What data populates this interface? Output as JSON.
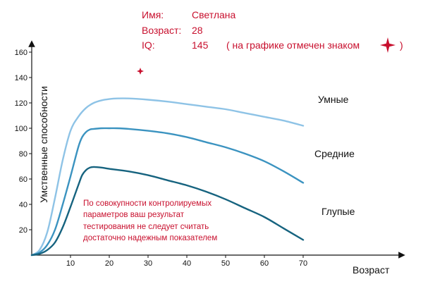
{
  "info": {
    "name_label": "Имя:",
    "name_value": "Светлана",
    "age_label": "Возраст:",
    "age_value": "28",
    "iq_label": "IQ:",
    "iq_value": "145",
    "iq_note_start": "( на графике отмечен знаком",
    "iq_note_end": ")"
  },
  "note_lines": [
    "По совокупности контролируемых",
    "параметров ваш результат",
    "тестирования не следует считать",
    "достаточно надежным показателем"
  ],
  "accent_color": "#c8102e",
  "chart_data": {
    "type": "line",
    "title": "",
    "xlabel": "Возраст",
    "ylabel": "Умственные способности",
    "xlim": [
      0,
      70
    ],
    "ylim": [
      0,
      170
    ],
    "xticks": [
      10,
      20,
      30,
      40,
      50,
      60,
      70
    ],
    "yticks": [
      20,
      40,
      60,
      80,
      100,
      120,
      140,
      160
    ],
    "grid": false,
    "series": [
      {
        "name": "Умные",
        "color": "#8ec3e6",
        "x": [
          0,
          2,
          4,
          6,
          8,
          10,
          12,
          14,
          16,
          18,
          20,
          22,
          25,
          30,
          35,
          40,
          45,
          50,
          55,
          60,
          65,
          70
        ],
        "y": [
          0,
          4,
          18,
          45,
          75,
          98,
          109,
          116,
          120,
          122,
          123,
          123.5,
          123.5,
          122.5,
          121,
          119,
          117,
          115,
          112,
          109,
          106,
          102
        ]
      },
      {
        "name": "Средние",
        "color": "#3b93c0",
        "x": [
          0,
          2,
          4,
          6,
          8,
          10,
          12,
          13,
          14,
          15,
          16,
          18,
          20,
          22,
          25,
          30,
          35,
          40,
          45,
          50,
          55,
          60,
          65,
          70
        ],
        "y": [
          0,
          2,
          8,
          20,
          40,
          62,
          85,
          93,
          97,
          99,
          99.5,
          100,
          100,
          100,
          99.5,
          98,
          96,
          93,
          89,
          85,
          80,
          74,
          66,
          57
        ]
      },
      {
        "name": "Глупые",
        "color": "#16637f",
        "x": [
          0,
          2,
          4,
          6,
          8,
          10,
          12,
          13,
          14,
          15,
          16,
          18,
          20,
          25,
          30,
          35,
          40,
          45,
          50,
          55,
          60,
          65,
          70
        ],
        "y": [
          0,
          1,
          4,
          10,
          22,
          38,
          55,
          63,
          67,
          69,
          69.5,
          69,
          68,
          66,
          63,
          59,
          55,
          50,
          44,
          37,
          30,
          21,
          12
        ]
      }
    ],
    "marker": {
      "x": 28,
      "y": 145,
      "symbol": "four-point-star",
      "color": "#c8102e"
    }
  }
}
